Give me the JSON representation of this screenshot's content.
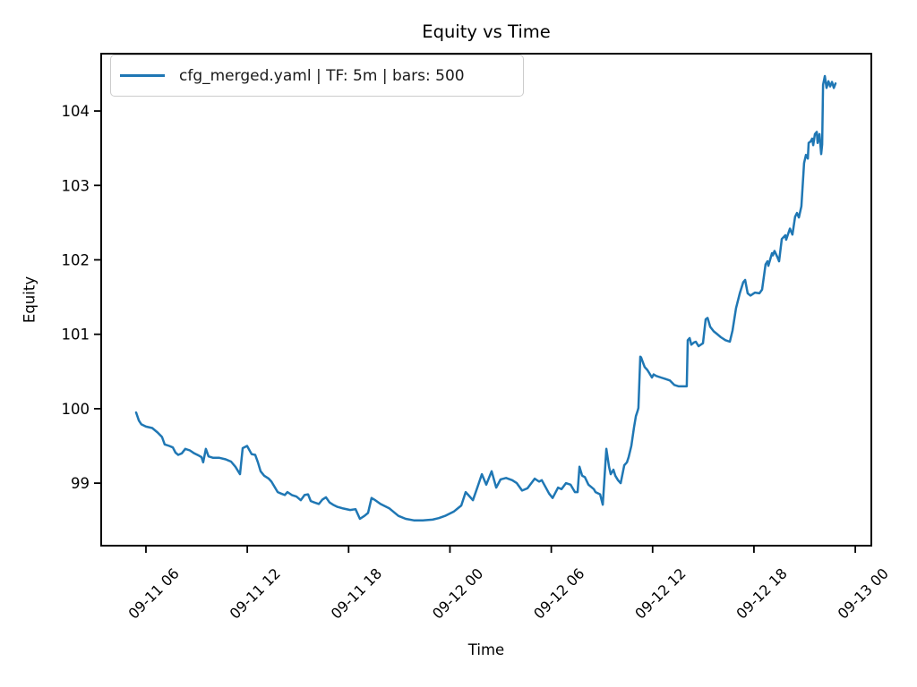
{
  "title": "Equity vs Time",
  "axes": {
    "xlabel": "Time",
    "ylabel": "Equity"
  },
  "legend": {
    "entries": [
      {
        "label": "cfg_merged.yaml | TF: 5m | bars: 500",
        "color": "#1f77b4"
      }
    ],
    "position": "upper left"
  },
  "chart_data": {
    "type": "line",
    "title": "Equity vs Time",
    "xlabel": "Time",
    "ylabel": "Equity",
    "grid": false,
    "legend_position": "upper left",
    "line_color": "#1f77b4",
    "x_unit": "hours since 09-11 00:00",
    "xlim": [
      3.35,
      48.95
    ],
    "ylim": [
      98.16,
      104.77
    ],
    "x_ticks": [
      {
        "t": 6,
        "label": "09-11 06"
      },
      {
        "t": 12,
        "label": "09-11 12"
      },
      {
        "t": 18,
        "label": "09-11 18"
      },
      {
        "t": 24,
        "label": "09-12 00"
      },
      {
        "t": 30,
        "label": "09-12 06"
      },
      {
        "t": 36,
        "label": "09-12 12"
      },
      {
        "t": 42,
        "label": "09-12 18"
      },
      {
        "t": 48,
        "label": "09-13 00"
      }
    ],
    "y_ticks": [
      99,
      100,
      101,
      102,
      103,
      104
    ],
    "series": [
      {
        "name": "cfg_merged.yaml | TF: 5m | bars: 500",
        "points": [
          [
            5.42,
            99.95
          ],
          [
            5.58,
            99.84
          ],
          [
            5.73,
            99.79
          ],
          [
            6.0,
            99.76
          ],
          [
            6.37,
            99.74
          ],
          [
            6.69,
            99.68
          ],
          [
            6.95,
            99.62
          ],
          [
            7.11,
            99.52
          ],
          [
            7.38,
            99.5
          ],
          [
            7.59,
            99.48
          ],
          [
            7.75,
            99.41
          ],
          [
            7.91,
            99.38
          ],
          [
            8.12,
            99.4
          ],
          [
            8.33,
            99.46
          ],
          [
            8.6,
            99.44
          ],
          [
            8.86,
            99.4
          ],
          [
            9.13,
            99.37
          ],
          [
            9.29,
            99.35
          ],
          [
            9.39,
            99.28
          ],
          [
            9.55,
            99.46
          ],
          [
            9.71,
            99.36
          ],
          [
            9.98,
            99.34
          ],
          [
            10.35,
            99.34
          ],
          [
            10.72,
            99.32
          ],
          [
            11.04,
            99.29
          ],
          [
            11.3,
            99.22
          ],
          [
            11.57,
            99.12
          ],
          [
            11.73,
            99.47
          ],
          [
            11.99,
            99.5
          ],
          [
            12.26,
            99.39
          ],
          [
            12.47,
            99.38
          ],
          [
            12.63,
            99.28
          ],
          [
            12.79,
            99.16
          ],
          [
            13.0,
            99.1
          ],
          [
            13.27,
            99.06
          ],
          [
            13.43,
            99.02
          ],
          [
            13.8,
            98.88
          ],
          [
            14.01,
            98.86
          ],
          [
            14.22,
            98.84
          ],
          [
            14.38,
            98.88
          ],
          [
            14.64,
            98.84
          ],
          [
            14.91,
            98.82
          ],
          [
            15.17,
            98.77
          ],
          [
            15.39,
            98.84
          ],
          [
            15.6,
            98.85
          ],
          [
            15.76,
            98.76
          ],
          [
            15.97,
            98.74
          ],
          [
            16.24,
            98.72
          ],
          [
            16.45,
            98.78
          ],
          [
            16.66,
            98.81
          ],
          [
            16.87,
            98.74
          ],
          [
            17.08,
            98.71
          ],
          [
            17.35,
            98.68
          ],
          [
            17.67,
            98.66
          ],
          [
            18.09,
            98.64
          ],
          [
            18.41,
            98.65
          ],
          [
            18.67,
            98.52
          ],
          [
            18.94,
            98.56
          ],
          [
            19.15,
            98.6
          ],
          [
            19.36,
            98.8
          ],
          [
            19.58,
            98.77
          ],
          [
            19.89,
            98.72
          ],
          [
            20.42,
            98.66
          ],
          [
            20.95,
            98.56
          ],
          [
            21.38,
            98.52
          ],
          [
            21.86,
            98.5
          ],
          [
            22.39,
            98.5
          ],
          [
            22.97,
            98.51
          ],
          [
            23.34,
            98.53
          ],
          [
            23.71,
            98.56
          ],
          [
            24.24,
            98.62
          ],
          [
            24.67,
            98.7
          ],
          [
            24.93,
            98.88
          ],
          [
            25.09,
            98.84
          ],
          [
            25.36,
            98.77
          ],
          [
            25.62,
            98.94
          ],
          [
            25.89,
            99.12
          ],
          [
            26.15,
            98.98
          ],
          [
            26.47,
            99.16
          ],
          [
            26.74,
            98.94
          ],
          [
            27.0,
            99.05
          ],
          [
            27.32,
            99.07
          ],
          [
            27.69,
            99.04
          ],
          [
            27.96,
            99.0
          ],
          [
            28.27,
            98.9
          ],
          [
            28.59,
            98.93
          ],
          [
            29.02,
            99.06
          ],
          [
            29.28,
            99.02
          ],
          [
            29.44,
            99.04
          ],
          [
            29.87,
            98.86
          ],
          [
            30.08,
            98.8
          ],
          [
            30.4,
            98.94
          ],
          [
            30.61,
            98.92
          ],
          [
            30.87,
            99.0
          ],
          [
            31.14,
            98.98
          ],
          [
            31.4,
            98.88
          ],
          [
            31.56,
            98.88
          ],
          [
            31.67,
            99.22
          ],
          [
            31.83,
            99.1
          ],
          [
            31.99,
            99.08
          ],
          [
            32.2,
            98.98
          ],
          [
            32.52,
            98.92
          ],
          [
            32.62,
            98.88
          ],
          [
            32.89,
            98.85
          ],
          [
            33.05,
            98.71
          ],
          [
            33.26,
            99.46
          ],
          [
            33.42,
            99.22
          ],
          [
            33.52,
            99.12
          ],
          [
            33.68,
            99.18
          ],
          [
            33.79,
            99.1
          ],
          [
            33.95,
            99.04
          ],
          [
            34.11,
            99.0
          ],
          [
            34.32,
            99.24
          ],
          [
            34.48,
            99.28
          ],
          [
            34.58,
            99.35
          ],
          [
            34.74,
            99.5
          ],
          [
            34.9,
            99.75
          ],
          [
            35.01,
            99.9
          ],
          [
            35.11,
            99.97
          ],
          [
            35.16,
            100.01
          ],
          [
            35.27,
            100.7
          ],
          [
            35.32,
            100.69
          ],
          [
            35.43,
            100.62
          ],
          [
            35.53,
            100.56
          ],
          [
            35.69,
            100.52
          ],
          [
            35.8,
            100.48
          ],
          [
            35.96,
            100.42
          ],
          [
            36.06,
            100.46
          ],
          [
            36.22,
            100.44
          ],
          [
            36.49,
            100.42
          ],
          [
            36.75,
            100.4
          ],
          [
            37.02,
            100.38
          ],
          [
            37.28,
            100.32
          ],
          [
            37.55,
            100.3
          ],
          [
            37.81,
            100.3
          ],
          [
            38.02,
            100.3
          ],
          [
            38.08,
            100.92
          ],
          [
            38.19,
            100.95
          ],
          [
            38.29,
            100.86
          ],
          [
            38.45,
            100.89
          ],
          [
            38.56,
            100.9
          ],
          [
            38.72,
            100.84
          ],
          [
            38.98,
            100.88
          ],
          [
            39.14,
            101.2
          ],
          [
            39.25,
            101.22
          ],
          [
            39.41,
            101.1
          ],
          [
            39.62,
            101.04
          ],
          [
            39.78,
            101.01
          ],
          [
            40.04,
            100.96
          ],
          [
            40.31,
            100.92
          ],
          [
            40.57,
            100.9
          ],
          [
            40.73,
            101.05
          ],
          [
            40.94,
            101.35
          ],
          [
            41.16,
            101.55
          ],
          [
            41.37,
            101.7
          ],
          [
            41.48,
            101.73
          ],
          [
            41.63,
            101.55
          ],
          [
            41.79,
            101.52
          ],
          [
            42.06,
            101.56
          ],
          [
            42.32,
            101.55
          ],
          [
            42.48,
            101.6
          ],
          [
            42.69,
            101.94
          ],
          [
            42.8,
            101.98
          ],
          [
            42.85,
            101.92
          ],
          [
            43.07,
            102.09
          ],
          [
            43.12,
            102.06
          ],
          [
            43.22,
            102.12
          ],
          [
            43.38,
            102.04
          ],
          [
            43.49,
            101.98
          ],
          [
            43.65,
            102.28
          ],
          [
            43.86,
            102.33
          ],
          [
            43.91,
            102.27
          ],
          [
            44.13,
            102.42
          ],
          [
            44.18,
            102.39
          ],
          [
            44.28,
            102.34
          ],
          [
            44.44,
            102.58
          ],
          [
            44.55,
            102.63
          ],
          [
            44.66,
            102.57
          ],
          [
            44.81,
            102.72
          ],
          [
            44.97,
            103.3
          ],
          [
            45.08,
            103.41
          ],
          [
            45.19,
            103.36
          ],
          [
            45.24,
            103.57
          ],
          [
            45.35,
            103.59
          ],
          [
            45.45,
            103.63
          ],
          [
            45.51,
            103.54
          ],
          [
            45.61,
            103.69
          ],
          [
            45.72,
            103.72
          ],
          [
            45.77,
            103.57
          ],
          [
            45.88,
            103.69
          ],
          [
            45.98,
            103.42
          ],
          [
            46.04,
            103.55
          ],
          [
            46.09,
            104.35
          ],
          [
            46.2,
            104.47
          ],
          [
            46.3,
            104.31
          ],
          [
            46.41,
            104.4
          ],
          [
            46.51,
            104.33
          ],
          [
            46.62,
            104.39
          ],
          [
            46.73,
            104.31
          ],
          [
            46.83,
            104.37
          ]
        ]
      }
    ]
  }
}
